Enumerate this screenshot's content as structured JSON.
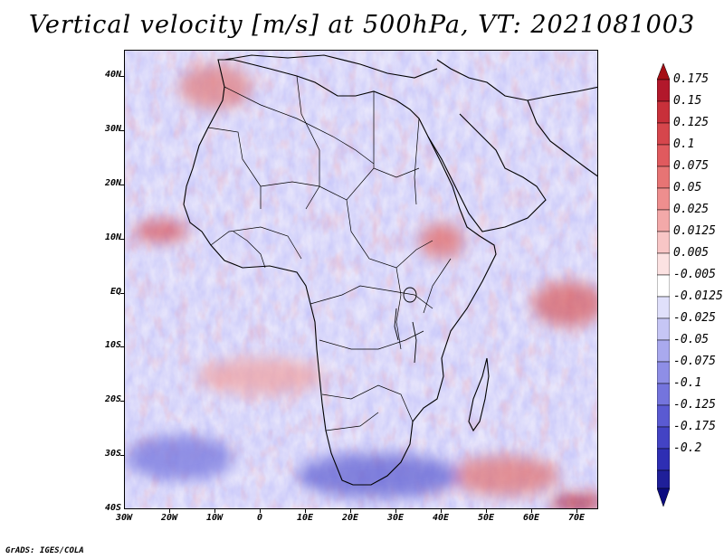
{
  "title": "Vertical velocity [m/s] at 500hPa, VT: 2021081003",
  "footer": "GrADS: IGES/COLA",
  "map": {
    "region": "Africa",
    "lon_range": [
      -30,
      75
    ],
    "lat_range": [
      -40,
      45
    ],
    "lat_ticks": [
      {
        "value": 40,
        "label": "40N"
      },
      {
        "value": 30,
        "label": "30N"
      },
      {
        "value": 20,
        "label": "20N"
      },
      {
        "value": 10,
        "label": "10N"
      },
      {
        "value": 0,
        "label": "EQ"
      },
      {
        "value": -10,
        "label": "10S"
      },
      {
        "value": -20,
        "label": "20S"
      },
      {
        "value": -30,
        "label": "30S"
      },
      {
        "value": -40,
        "label": "40S"
      }
    ],
    "lon_ticks": [
      {
        "value": -30,
        "label": "30W"
      },
      {
        "value": -20,
        "label": "20W"
      },
      {
        "value": -10,
        "label": "10W"
      },
      {
        "value": 0,
        "label": "0"
      },
      {
        "value": 10,
        "label": "10E"
      },
      {
        "value": 20,
        "label": "20E"
      },
      {
        "value": 30,
        "label": "30E"
      },
      {
        "value": 40,
        "label": "40E"
      },
      {
        "value": 50,
        "label": "50E"
      },
      {
        "value": 60,
        "label": "60E"
      },
      {
        "value": 70,
        "label": "70E"
      }
    ]
  },
  "colorbar": {
    "levels": [
      "0.175",
      "0.15",
      "0.125",
      "0.1",
      "0.075",
      "0.05",
      "0.025",
      "0.0125",
      "0.005",
      "-0.005",
      "-0.0125",
      "-0.025",
      "-0.05",
      "-0.075",
      "-0.1",
      "-0.125",
      "-0.175",
      "-0.2"
    ],
    "colors": [
      "#b2182b",
      "#c8303a",
      "#d6464c",
      "#e05a5e",
      "#e77474",
      "#ee8e8e",
      "#f3a9a9",
      "#f8c6c6",
      "#fce2e2",
      "#ffffff",
      "#e0e0fb",
      "#c6c6f5",
      "#a9a9ee",
      "#8e8ee6",
      "#7474dd",
      "#5a5ad2",
      "#4343c4",
      "#2e2eb3",
      "#1f1f99"
    ],
    "top_arrow_color": "#a50f15",
    "bottom_arrow_color": "#0b0b80"
  }
}
